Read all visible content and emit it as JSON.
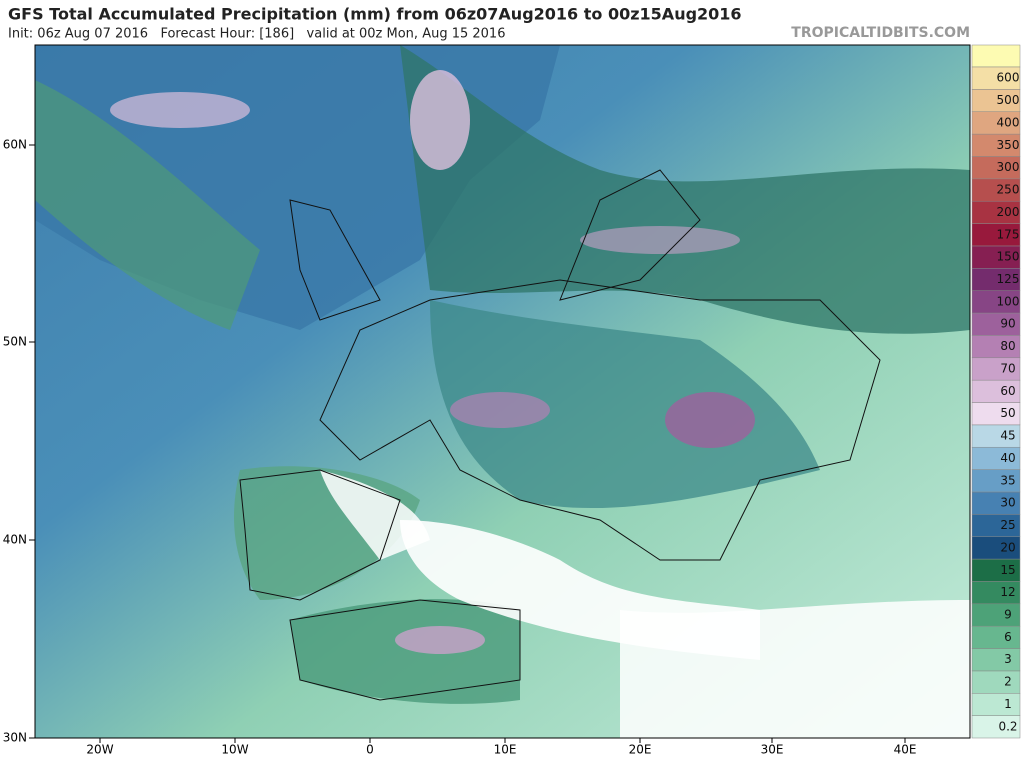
{
  "header": {
    "title": "GFS Total Accumulated Precipitation (mm) from 06z07Aug2016 to 00z15Aug2016",
    "subtitle": "Init: 06z Aug 07 2016   Forecast Hour: [186]   valid at 00z Mon, Aug 15 2016",
    "watermark": "TROPICALTIDBITS.COM"
  },
  "axes": {
    "lat_labels": [
      "60N",
      "50N",
      "40N",
      "30N"
    ],
    "lon_labels": [
      "20W",
      "10W",
      "0",
      "10E",
      "20E",
      "30E",
      "40E"
    ]
  },
  "colorbar": [
    {
      "label": "0.2",
      "color": "#d9f4e8"
    },
    {
      "label": "1",
      "color": "#bce8d3"
    },
    {
      "label": "2",
      "color": "#9fd9bd"
    },
    {
      "label": "3",
      "color": "#83c9a6"
    },
    {
      "label": "6",
      "color": "#67b78f"
    },
    {
      "label": "9",
      "color": "#4da278"
    },
    {
      "label": "12",
      "color": "#348a60"
    },
    {
      "label": "15",
      "color": "#1c6e47"
    },
    {
      "label": "20",
      "color": "#1a4d7c"
    },
    {
      "label": "25",
      "color": "#2c6698"
    },
    {
      "label": "30",
      "color": "#4781b2"
    },
    {
      "label": "35",
      "color": "#679ec6"
    },
    {
      "label": "40",
      "color": "#8cbad8"
    },
    {
      "label": "45",
      "color": "#b9d8e6"
    },
    {
      "label": "50",
      "color": "#eedcee"
    },
    {
      "label": "60",
      "color": "#dcbfdc"
    },
    {
      "label": "70",
      "color": "#c9a1c9"
    },
    {
      "label": "80",
      "color": "#b480b3"
    },
    {
      "label": "90",
      "color": "#9d619c"
    },
    {
      "label": "100",
      "color": "#874585"
    },
    {
      "label": "125",
      "color": "#742c6d"
    },
    {
      "label": "150",
      "color": "#861f52"
    },
    {
      "label": "175",
      "color": "#98193c"
    },
    {
      "label": "200",
      "color": "#a83342"
    },
    {
      "label": "250",
      "color": "#b64f4e"
    },
    {
      "label": "300",
      "color": "#c56b5c"
    },
    {
      "label": "350",
      "color": "#d3896d"
    },
    {
      "label": "400",
      "color": "#dfa680"
    },
    {
      "label": "500",
      "color": "#ebc493"
    },
    {
      "label": "600",
      "color": "#f4dfa6"
    }
  ]
}
